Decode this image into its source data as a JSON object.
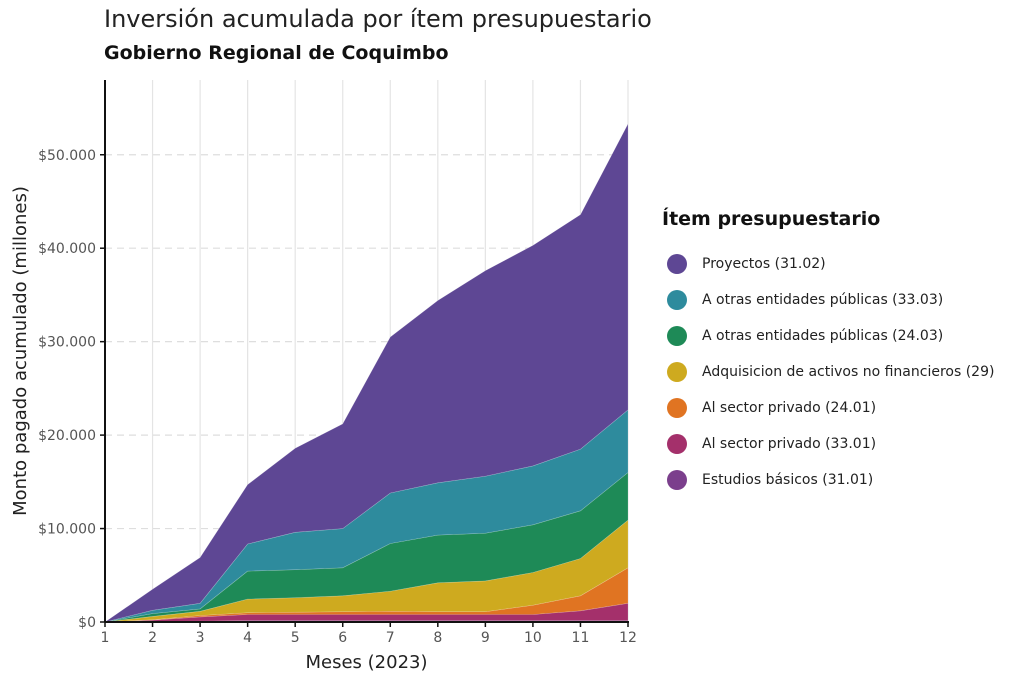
{
  "title": "Inversión acumulada por ítem presupuestario",
  "subtitle": "Gobierno Regional de Coquimbo",
  "chart_data": {
    "type": "area",
    "stacked": true,
    "xlabel": "Meses (2023)",
    "ylabel": "Monto pagado acumulado (millones)",
    "x": [
      1,
      2,
      3,
      4,
      5,
      6,
      7,
      8,
      9,
      10,
      11,
      12
    ],
    "x_ticks": [
      "1",
      "2",
      "3",
      "4",
      "5",
      "6",
      "7",
      "8",
      "9",
      "10",
      "11",
      "12"
    ],
    "ylim": [
      0,
      58000
    ],
    "y_ticks": [
      0,
      10000,
      20000,
      30000,
      40000,
      50000
    ],
    "y_tick_labels": [
      "$0",
      "$10.000",
      "$20.000",
      "$30.000",
      "$40.000",
      "$50.000"
    ],
    "grid": true,
    "legend_title": "Ítem presupuestario",
    "legend_position": "right",
    "series": [
      {
        "name": "Estudios básicos (31.01)",
        "color": "#7B3F8C",
        "values": [
          0,
          50,
          100,
          150,
          150,
          150,
          150,
          150,
          150,
          150,
          150,
          150
        ]
      },
      {
        "name": "Al sector privado (33.01)",
        "color": "#A4306B",
        "values": [
          0,
          150,
          450,
          650,
          650,
          650,
          650,
          650,
          650,
          650,
          1050,
          1850
        ]
      },
      {
        "name": "Al sector privado (24.01)",
        "color": "#E07422",
        "values": [
          0,
          50,
          150,
          200,
          250,
          300,
          350,
          300,
          300,
          1000,
          1600,
          3800
        ]
      },
      {
        "name": "Adquisicion de activos no financieros (29)",
        "color": "#CEAA1F",
        "values": [
          0,
          350,
          450,
          1450,
          1550,
          1700,
          2150,
          3100,
          3300,
          3500,
          4000,
          5100
        ]
      },
      {
        "name": "A otras entidades públicas (24.03)",
        "color": "#1E8A57",
        "values": [
          0,
          300,
          250,
          3000,
          3000,
          3000,
          5100,
          5100,
          5100,
          5100,
          5100,
          5100
        ]
      },
      {
        "name": "A otras entidades públicas (33.03)",
        "color": "#2E8B9D",
        "values": [
          0,
          350,
          600,
          2900,
          4000,
          4200,
          5400,
          5600,
          6100,
          6300,
          6600,
          6700
        ]
      },
      {
        "name": "Proyectos (31.02)",
        "color": "#5E4794",
        "values": [
          0,
          2250,
          4900,
          6350,
          9000,
          11200,
          16700,
          19500,
          22000,
          23600,
          25100,
          30600
        ]
      }
    ]
  }
}
